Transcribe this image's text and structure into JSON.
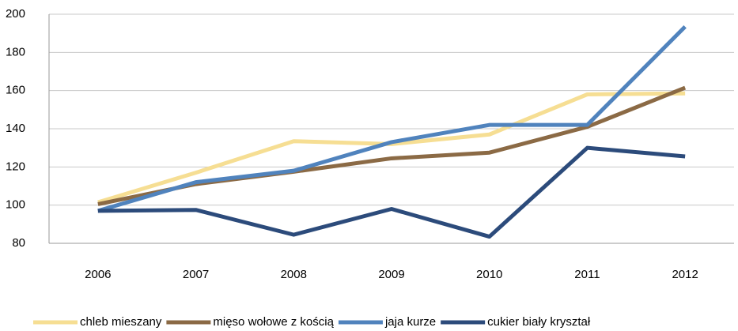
{
  "chart_data": {
    "type": "line",
    "categories": [
      "2006",
      "2007",
      "2008",
      "2009",
      "2010",
      "2011",
      "2012"
    ],
    "series": [
      {
        "name": "chleb mieszany",
        "color": "#f6de93",
        "values": [
          101.5,
          117,
          133.5,
          132,
          137,
          158,
          158.5
        ]
      },
      {
        "name": "mięso wołowe z kością",
        "color": "#8b6a45",
        "values": [
          100.5,
          111,
          117.5,
          124.5,
          127.5,
          141,
          161.5
        ]
      },
      {
        "name": "jaja kurze",
        "color": "#5083bd",
        "values": [
          97,
          112,
          118,
          133,
          142,
          142,
          193.5
        ]
      },
      {
        "name": "cukier biały kryształ",
        "color": "#2c4b7b",
        "values": [
          97,
          97.5,
          84.5,
          98,
          83.5,
          130,
          125.5
        ]
      }
    ],
    "ylim": [
      80,
      200
    ],
    "yticks": [
      80,
      100,
      120,
      140,
      160,
      180,
      200
    ],
    "grid": true,
    "legend": "bottom"
  }
}
